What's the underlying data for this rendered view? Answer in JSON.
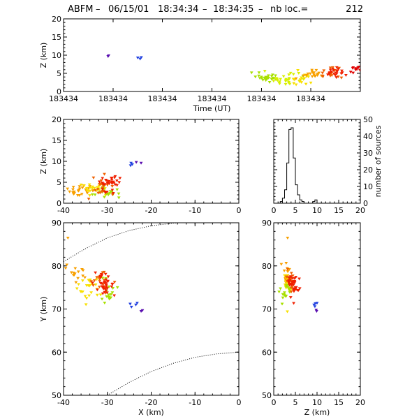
{
  "header": {
    "station": "ABFM",
    "date": "06/15/01",
    "time_start": "18:34:34",
    "time_end": "18:34:35",
    "nb_label": "nb loc.=",
    "nb_value": "212"
  },
  "chart_data": [
    {
      "id": "time-height",
      "type": "scatter",
      "xlabel": "Time (UT)",
      "ylabel": "Z (km)",
      "ylim": [
        0,
        20
      ],
      "yticks": [
        0,
        5,
        10,
        15,
        20
      ],
      "xticks": [
        0,
        0.167,
        0.333,
        0.5,
        0.667,
        0.833
      ],
      "xtick_labels": [
        "183434",
        "183434",
        "183434",
        "183434",
        "183434",
        "183434"
      ],
      "xlim": [
        0,
        1
      ],
      "clusters": [
        {
          "color": "#5a0fb0",
          "points": [
            [
              0.15,
              9.7
            ],
            [
              0.152,
              9.9
            ]
          ]
        },
        {
          "color": "#2040e0",
          "points": [
            [
              0.25,
              9.3
            ],
            [
              0.258,
              9.0
            ],
            [
              0.262,
              9.4
            ]
          ]
        },
        {
          "color": "#a8e000",
          "cx": 0.69,
          "cy": 4.0,
          "sx": 0.03,
          "sy": 0.7,
          "n": 26
        },
        {
          "color": "#d8f000",
          "cx": 0.74,
          "cy": 3.3,
          "sx": 0.03,
          "sy": 0.8,
          "n": 28
        },
        {
          "color": "#f8e000",
          "cx": 0.8,
          "cy": 3.2,
          "sx": 0.02,
          "sy": 0.8,
          "n": 18
        },
        {
          "color": "#f8a000",
          "cx": 0.84,
          "cy": 4.8,
          "sx": 0.03,
          "sy": 0.8,
          "n": 20
        },
        {
          "color": "#f06000",
          "cx": 0.89,
          "cy": 5.0,
          "sx": 0.02,
          "sy": 0.8,
          "n": 16
        },
        {
          "color": "#f02000",
          "cx": 0.915,
          "cy": 5.2,
          "sx": 0.02,
          "sy": 0.8,
          "n": 22
        },
        {
          "color": "#e00000",
          "cx": 0.985,
          "cy": 6.3,
          "sx": 0.012,
          "sy": 0.7,
          "n": 10
        }
      ]
    },
    {
      "id": "x-z",
      "type": "scatter",
      "ylabel": "Z (km)",
      "xlim": [
        -40,
        0
      ],
      "ylim": [
        0,
        20
      ],
      "xticks": [
        -40,
        -30,
        -20,
        -10,
        0
      ],
      "yticks": [
        0,
        5,
        10,
        15,
        20
      ],
      "clusters": [
        {
          "color": "#2040e0",
          "points": [
            [
              -24.7,
              9.0
            ],
            [
              -24.6,
              9.6
            ],
            [
              -24.3,
              9.3
            ]
          ]
        },
        {
          "color": "#5a0fb0",
          "points": [
            [
              -23.4,
              9.8
            ],
            [
              -22.3,
              9.6
            ]
          ]
        },
        {
          "color": "#f8a000",
          "cx": -36,
          "cy": 3.0,
          "sx": 2.0,
          "sy": 0.7,
          "n": 26
        },
        {
          "color": "#f8e000",
          "cx": -33,
          "cy": 3.6,
          "sx": 1.5,
          "sy": 0.7,
          "n": 22
        },
        {
          "color": "#a8e000",
          "cx": -30,
          "cy": 2.5,
          "sx": 1.5,
          "sy": 0.6,
          "n": 18
        },
        {
          "color": "#f06000",
          "cx": -31,
          "cy": 4.2,
          "sx": 1.2,
          "sy": 0.9,
          "n": 20
        },
        {
          "color": "#f02000",
          "cx": -29.5,
          "cy": 4.8,
          "sx": 1.3,
          "sy": 1.0,
          "n": 34
        }
      ]
    },
    {
      "id": "z-histogram",
      "type": "bar",
      "ylabel": "number of sources",
      "xlim": [
        0,
        20
      ],
      "ylim": [
        0,
        50
      ],
      "xticks": [
        0,
        5,
        10,
        15,
        20
      ],
      "yticks": [
        0,
        10,
        20,
        30,
        40,
        50
      ],
      "bin_width": 0.5,
      "bin_start": 0,
      "values": [
        0,
        0,
        0,
        1,
        3,
        8,
        24,
        44,
        45,
        27,
        11,
        5,
        2,
        1,
        0,
        0,
        0,
        0,
        1,
        2,
        0,
        0,
        0,
        0,
        0,
        0,
        0,
        0,
        0,
        0,
        0,
        0,
        0,
        0,
        0,
        0,
        0,
        0,
        0,
        0
      ]
    },
    {
      "id": "x-y",
      "type": "scatter",
      "xlabel": "X (km)",
      "ylabel": "Y (km)",
      "xlim": [
        -40,
        0
      ],
      "ylim": [
        50,
        90
      ],
      "xticks": [
        -40,
        -30,
        -20,
        -10,
        0
      ],
      "yticks": [
        50,
        60,
        70,
        80,
        90
      ],
      "range_rings": [
        {
          "points": [
            [
              -40,
              81
            ],
            [
              -35,
              84
            ],
            [
              -30,
              86.5
            ],
            [
              -25,
              88.2
            ],
            [
              -20,
              89.3
            ],
            [
              -15,
              89.9
            ],
            [
              -10,
              90.3
            ],
            [
              -5,
              90.4
            ],
            [
              0,
              90.4
            ]
          ]
        },
        {
          "points": [
            [
              -30,
              50
            ],
            [
              -25,
              53
            ],
            [
              -20,
              55.5
            ],
            [
              -15,
              57.4
            ],
            [
              -10,
              58.8
            ],
            [
              -5,
              59.6
            ],
            [
              0,
              60
            ]
          ]
        }
      ],
      "clusters": [
        {
          "color": "#f8a000",
          "points": [
            [
              -39,
              86.5
            ]
          ]
        },
        {
          "color": "#f8a000",
          "cx": -37,
          "cy": 78,
          "sx": 1.2,
          "sy": 1.2,
          "n": 16
        },
        {
          "color": "#f8e000",
          "cx": -34,
          "cy": 75,
          "sx": 1.5,
          "sy": 1.5,
          "n": 24
        },
        {
          "color": "#a8e000",
          "cx": -30,
          "cy": 74,
          "sx": 1.2,
          "sy": 1.6,
          "n": 18
        },
        {
          "color": "#f06000",
          "cx": -31.5,
          "cy": 76.5,
          "sx": 1.0,
          "sy": 1.2,
          "n": 18
        },
        {
          "color": "#f02000",
          "cx": -30.5,
          "cy": 75.5,
          "sx": 1.2,
          "sy": 1.3,
          "n": 36
        },
        {
          "color": "#2040e0",
          "points": [
            [
              -24.8,
              71.2
            ],
            [
              -24.5,
              70.5
            ],
            [
              -23.5,
              71.0
            ],
            [
              -23.2,
              71.4
            ]
          ]
        },
        {
          "color": "#5a0fb0",
          "points": [
            [
              -22.3,
              69.5
            ],
            [
              -22.0,
              69.7
            ]
          ]
        }
      ]
    },
    {
      "id": "z-y",
      "type": "scatter",
      "xlabel": "Z (km)",
      "xlim": [
        0,
        20
      ],
      "ylim": [
        50,
        90
      ],
      "xticks": [
        0,
        5,
        10,
        15,
        20
      ],
      "yticks": [
        50,
        60,
        70,
        80,
        90
      ],
      "clusters": [
        {
          "color": "#f8a000",
          "points": [
            [
              3.2,
              86.5
            ]
          ]
        },
        {
          "color": "#f8a000",
          "cx": 2.8,
          "cy": 78.5,
          "sx": 0.6,
          "sy": 1.2,
          "n": 14
        },
        {
          "color": "#f8e000",
          "cx": 3.3,
          "cy": 75.5,
          "sx": 0.7,
          "sy": 1.5,
          "n": 22
        },
        {
          "color": "#a8e000",
          "cx": 2.6,
          "cy": 74,
          "sx": 0.6,
          "sy": 1.5,
          "n": 18
        },
        {
          "color": "#f06000",
          "cx": 4.0,
          "cy": 76.5,
          "sx": 0.6,
          "sy": 1.2,
          "n": 18
        },
        {
          "color": "#f02000",
          "cx": 4.6,
          "cy": 75.5,
          "sx": 0.7,
          "sy": 1.3,
          "n": 36
        },
        {
          "color": "#2040e0",
          "points": [
            [
              9.3,
              71.0
            ],
            [
              9.6,
              71.3
            ],
            [
              10.0,
              71.4
            ],
            [
              9.5,
              70.6
            ]
          ]
        },
        {
          "color": "#5a0fb0",
          "points": [
            [
              9.9,
              69.5
            ],
            [
              9.8,
              69.8
            ]
          ]
        }
      ]
    }
  ]
}
